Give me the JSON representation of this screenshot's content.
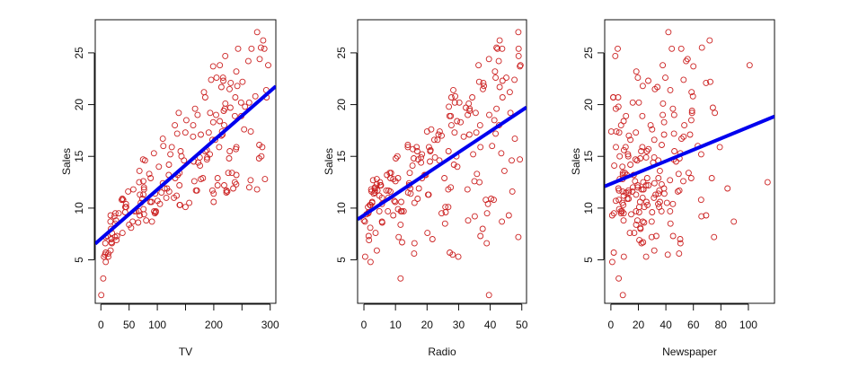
{
  "chart_data": [
    {
      "type": "scatter",
      "xlabel": "TV",
      "ylabel": "Sales",
      "xlim": [
        -10,
        310
      ],
      "ylim": [
        0.8,
        28.2
      ],
      "x_ticks": [
        0,
        50,
        100,
        150,
        200,
        250,
        300
      ],
      "x_tick_labels": [
        "0",
        "50",
        "100",
        "",
        "200",
        "",
        "300"
      ],
      "y_ticks": [
        5,
        10,
        15,
        20,
        25
      ],
      "y_tick_labels": [
        "5",
        "10",
        "15",
        "20",
        "25"
      ],
      "fit": {
        "intercept": 7.0326,
        "slope": 0.04754
      },
      "x_var": "tv",
      "grid": false
    },
    {
      "type": "scatter",
      "xlabel": "Radio",
      "ylabel": "Sales",
      "xlim": [
        -2,
        51.5
      ],
      "ylim": [
        0.8,
        28.2
      ],
      "x_ticks": [
        0,
        10,
        20,
        30,
        40,
        50
      ],
      "x_tick_labels": [
        "0",
        "10",
        "20",
        "30",
        "40",
        "50"
      ],
      "y_ticks": [
        5,
        10,
        15,
        20,
        25
      ],
      "y_tick_labels": [
        "5",
        "10",
        "15",
        "20",
        "25"
      ],
      "fit": {
        "intercept": 9.3116,
        "slope": 0.2025
      },
      "x_var": "radio",
      "grid": false
    },
    {
      "type": "scatter",
      "xlabel": "Newspaper",
      "ylabel": "Sales",
      "xlim": [
        -4.5,
        119
      ],
      "ylim": [
        0.8,
        28.2
      ],
      "x_ticks": [
        0,
        20,
        40,
        60,
        80,
        100
      ],
      "x_tick_labels": [
        "0",
        "20",
        "40",
        "60",
        "80",
        "100"
      ],
      "y_ticks": [
        5,
        10,
        15,
        20,
        25
      ],
      "y_tick_labels": [
        "5",
        "10",
        "15",
        "20",
        "25"
      ],
      "fit": {
        "intercept": 12.3514,
        "slope": 0.0547
      },
      "x_var": "newspaper",
      "grid": false
    }
  ],
  "observations": {
    "tv": [
      230.1,
      44.5,
      17.2,
      151.5,
      180.8,
      8.7,
      57.5,
      120.2,
      8.6,
      199.8,
      66.1,
      214.7,
      23.8,
      97.5,
      204.1,
      195.4,
      67.8,
      281.4,
      69.2,
      147.3,
      218.4,
      237.4,
      13.2,
      228.3,
      62.3,
      262.9,
      142.9,
      240.1,
      248.8,
      70.6,
      292.9,
      112.9,
      97.2,
      265.6,
      95.7,
      290.7,
      266.9,
      74.7,
      43.1,
      228,
      202.5,
      177,
      293.6,
      206.9,
      25.1,
      175.1,
      89.7,
      239.9,
      227.2,
      66.9,
      199.8,
      100.4,
      216.4,
      182.6,
      262.7,
      198.9,
      7.3,
      136.2,
      210.8,
      210.7,
      53.5,
      261.3,
      239.3,
      102.7,
      131.1,
      69,
      31.5,
      139.3,
      237.4,
      216.8,
      199.1,
      109.8,
      26.8,
      129.4,
      213.4,
      16.9,
      27.5,
      120.5,
      5.4,
      116,
      76.4,
      239.8,
      75.3,
      68.4,
      213.5,
      193.2,
      76.3,
      110.7,
      88.3,
      109.8,
      134.3,
      28.6,
      217.7,
      250.9,
      107.4,
      163.3,
      197.6,
      184.9,
      289.7,
      135.2,
      222.4,
      296.4,
      280.2,
      187.9,
      238.2,
      137.9,
      25,
      90.4,
      13.1,
      255.4,
      225.8,
      241.7,
      175.7,
      209.6,
      78.2,
      75.1,
      139.2,
      76.4,
      125.7,
      19.4,
      141.3,
      18.8,
      224,
      123.1,
      229.5,
      87.2,
      7.8,
      80.2,
      220.3,
      59.6,
      0.7,
      265.2,
      8.4,
      219.8,
      36.9,
      48.3,
      25.6,
      273.7,
      43,
      184.9,
      73.4,
      193.7,
      220.5,
      104.6,
      96.2,
      140.3,
      240.1,
      243.2,
      38,
      44.7,
      280.7,
      121,
      197.6,
      171.3,
      187.8,
      4.1,
      93.9,
      149.8,
      11.7,
      131.7,
      172.5,
      85.7,
      188.4,
      163.5,
      117.2,
      234.5,
      17.9,
      206.8,
      215.4,
      284.3,
      50,
      164.5,
      19.6,
      168.4,
      222.4,
      276.9,
      248.4,
      170.2,
      276.7,
      165.6,
      156.6,
      218.5,
      56.2,
      287.6,
      253.8,
      205,
      139.5,
      191.1,
      286,
      18.7,
      39.5,
      75.5,
      17.2,
      166.8,
      149.7,
      38.2,
      94.2,
      177,
      283.6,
      232.1
    ],
    "radio": [
      37.8,
      39.3,
      45.9,
      41.3,
      10.8,
      48.9,
      32.8,
      19.6,
      2.1,
      2.6,
      5.8,
      24,
      35.1,
      7.6,
      32.9,
      47.7,
      36.6,
      39.6,
      20.5,
      23.9,
      27.7,
      5.1,
      15.9,
      16.9,
      12.6,
      3.5,
      29.3,
      16.7,
      27.1,
      16,
      28.3,
      17.4,
      1.5,
      20,
      1.4,
      4.1,
      43.8,
      49.4,
      26.7,
      37.7,
      22.3,
      33.4,
      27.7,
      8.4,
      25.7,
      22.5,
      9.9,
      41.5,
      15.8,
      11.7,
      3.1,
      9.6,
      41.7,
      46.2,
      28.8,
      49.4,
      28.1,
      19.2,
      49.6,
      29.5,
      2,
      42.7,
      15.5,
      29.6,
      42.8,
      9.3,
      24.6,
      14.5,
      27.5,
      43.9,
      30.6,
      14.3,
      33,
      5.7,
      24.6,
      43.7,
      1.6,
      28.5,
      29.9,
      7.7,
      26.7,
      4.1,
      20.3,
      44.5,
      43,
      18.4,
      27.5,
      40.6,
      25.5,
      47.8,
      4.9,
      1.5,
      33.5,
      36.5,
      14,
      31.6,
      3.5,
      21,
      42.3,
      41.7,
      4.3,
      36.3,
      10.1,
      17.2,
      34.3,
      46.4,
      11,
      0.3,
      0.4,
      26.9,
      8.2,
      38,
      15.4,
      20.6,
      46.8,
      35,
      14.3,
      0.8,
      36.9,
      16,
      26.8,
      21.7,
      2.4,
      34.6,
      32.3,
      11.8,
      38.9,
      0,
      49,
      12,
      39.6,
      2.9,
      27.2,
      33.5,
      38.6,
      47,
      39,
      28.9,
      25.9,
      43.9,
      17,
      35.4,
      33.2,
      5.7,
      14.8,
      1.9,
      7.3,
      49,
      40.3,
      25.8,
      13.9,
      8.4,
      23.3,
      39.7,
      21.1,
      11.6,
      43.5,
      1.3,
      36.9,
      18.4,
      18.1,
      35.8,
      18.1,
      36.8,
      14.7,
      3.4,
      37.6,
      5.2,
      23.6,
      10.6,
      11.6,
      20.9,
      20.1,
      7.1,
      3.4,
      48.9,
      30.2,
      7.8,
      2.3,
      10,
      2.6,
      5.4,
      5.7,
      43,
      21.3,
      45.1,
      2.1,
      28.7,
      13.9,
      12.1,
      41.1,
      10.8,
      4.1,
      42,
      35.6,
      3.7,
      4.9,
      9.3,
      42,
      8.6
    ],
    "newspaper": [
      69.2,
      45.1,
      69.3,
      58.5,
      58.4,
      75,
      23.5,
      11.6,
      1,
      21.2,
      24.2,
      4,
      65.9,
      7.2,
      46,
      52.9,
      114,
      55.8,
      18.3,
      19.1,
      53.4,
      23.5,
      49.6,
      26.2,
      18.3,
      19.5,
      12.6,
      22.9,
      22.9,
      40.8,
      43.2,
      38.6,
      30,
      0.3,
      7.4,
      8.5,
      5,
      45.7,
      35.1,
      32,
      31.6,
      38.7,
      1.8,
      26.4,
      43.3,
      31.5,
      35.7,
      18.5,
      49.9,
      36.8,
      34.6,
      3.6,
      39.6,
      58.7,
      15.9,
      60,
      41.4,
      16.6,
      37.7,
      9.3,
      21.4,
      54.7,
      27.3,
      8.4,
      28.9,
      0.9,
      2.2,
      10.2,
      11,
      27.2,
      38.7,
      31.7,
      19.3,
      31.3,
      13.1,
      89.4,
      20.7,
      14.2,
      9.4,
      23.1,
      22.3,
      36.9,
      32.5,
      35.6,
      33.8,
      65.7,
      16,
      63.2,
      73.4,
      51.4,
      9.3,
      33,
      59,
      72.3,
      10.9,
      52.9,
      5.9,
      22,
      51.2,
      45.9,
      49.8,
      100.9,
      21.4,
      17.9,
      5.3,
      59,
      29.7,
      23.2,
      25.6,
      5.5,
      56.5,
      23.2,
      2.4,
      10.7,
      34.5,
      52.7,
      25.6,
      14.8,
      79.2,
      22.3,
      46.2,
      50.4,
      15.6,
      12.4,
      74.2,
      25.9,
      50.6,
      9.2,
      3.2,
      43.1,
      8.7,
      43,
      2.1,
      45.1,
      65.6,
      8.5,
      9.3,
      59.7,
      20.5,
      1.7,
      12.9,
      75.6,
      37.9,
      34.4,
      38.9,
      9,
      8.7,
      44.3,
      11.9,
      20.6,
      37,
      48.7,
      14.2,
      37.7,
      9.5,
      5.7,
      50.5,
      24.3,
      45.2,
      34.6,
      30.7,
      49.3,
      25.6,
      7.4,
      5.4,
      84.8,
      21.6,
      19.4,
      57.6,
      6.4,
      18.4,
      47.4,
      17,
      12.8,
      13.1,
      41.8,
      20.3,
      35.2,
      23.7,
      17.6,
      8.3,
      27.4,
      29.7,
      71.8,
      30,
      19.6,
      26.6,
      18.2,
      3.7,
      23.4,
      5.8,
      6,
      31.6,
      3.6,
      6,
      13.8,
      8.1,
      6.4,
      66.2,
      8.7
    ],
    "sales": [
      22.1,
      10.4,
      9.3,
      18.5,
      12.9,
      7.2,
      11.8,
      13.2,
      4.8,
      10.6,
      8.6,
      17.4,
      9.2,
      9.7,
      19,
      22.4,
      12.5,
      24.4,
      11.3,
      14.6,
      18,
      12.5,
      5.6,
      15.5,
      9.7,
      12,
      15,
      15.9,
      18.9,
      10.5,
      21.4,
      11.9,
      9.6,
      17.4,
      9.5,
      12.8,
      25.4,
      14.7,
      10.1,
      21.5,
      16.6,
      17.1,
      20.7,
      12.9,
      8.5,
      14.9,
      10.6,
      23.2,
      14.8,
      9.7,
      11.4,
      10.7,
      22.6,
      21.2,
      20.2,
      23.7,
      5.5,
      13.2,
      23.8,
      18.4,
      8.1,
      24.2,
      15.7,
      14,
      18,
      9.3,
      9.5,
      13.4,
      18.9,
      22.3,
      18.3,
      12.4,
      8.8,
      11,
      17,
      8.7,
      6.9,
      14.2,
      5.3,
      11,
      11.8,
      12.3,
      11.3,
      13.6,
      21.7,
      15.2,
      12,
      16,
      12.9,
      16.7,
      11.2,
      7.3,
      19.4,
      22.2,
      11.5,
      16.9,
      11.7,
      15.5,
      25.4,
      17.2,
      11.7,
      23.8,
      14.8,
      14.7,
      20.7,
      19.2,
      7.2,
      8.7,
      5.3,
      19.8,
      13.4,
      21.8,
      14.1,
      15.9,
      14.6,
      12.6,
      12.2,
      9.4,
      15.9,
      6.6,
      15.5,
      7,
      11.6,
      15.2,
      19.7,
      10.6,
      6.6,
      8.8,
      24.7,
      9.7,
      1.6,
      12.7,
      5.7,
      19.6,
      10.8,
      11.6,
      9.5,
      20.8,
      9.6,
      20.7,
      10.9,
      19.2,
      20.1,
      10.4,
      11.4,
      10.3,
      13.2,
      25.4,
      10.9,
      10.1,
      16.1,
      11.6,
      16.6,
      19,
      15.6,
      3.2,
      15.3,
      10.1,
      7.3,
      12.9,
      14.4,
      13.3,
      14.9,
      18,
      11.9,
      11.9,
      8,
      12.2,
      17.1,
      15,
      8.4,
      14.5,
      7.6,
      11.7,
      11.5,
      27,
      20.2,
      11.7,
      11.8,
      12.6,
      10.5,
      12.2,
      8.7,
      26.2,
      17.6,
      22.6,
      10.3,
      17.3,
      15.9,
      6.7,
      10.8,
      9.9,
      5.9,
      19.6,
      17.3,
      7.6,
      9.7,
      12.8,
      25.5,
      13.4
    ]
  },
  "colors": {
    "points": "#cc2222",
    "fit_line": "#0000ee",
    "axes": "#111111"
  }
}
